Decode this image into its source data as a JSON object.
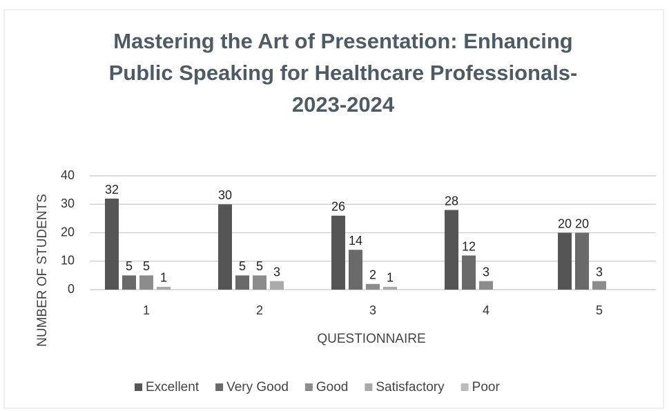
{
  "chart_data": {
    "type": "bar",
    "title": [
      "Mastering the Art of Presentation: Enhancing",
      "Public Speaking for Healthcare Professionals-",
      "2023-2024"
    ],
    "x_label": "QUESTIONNAIRE",
    "y_label": "NUMBER OF STUDENTS",
    "categories": [
      "1",
      "2",
      "3",
      "4",
      "5"
    ],
    "series": [
      {
        "name": "Excellent",
        "color": "#555555",
        "values": [
          32,
          30,
          26,
          28,
          20
        ]
      },
      {
        "name": "Very Good",
        "color": "#6a6a6a",
        "values": [
          5,
          5,
          14,
          12,
          20
        ]
      },
      {
        "name": "Good",
        "color": "#8c8c8c",
        "values": [
          5,
          5,
          2,
          3,
          3
        ]
      },
      {
        "name": "Satisfactory",
        "color": "#aaaaaa",
        "values": [
          1,
          3,
          1,
          null,
          null
        ]
      },
      {
        "name": "Poor",
        "color": "#bbbbbb",
        "values": [
          null,
          null,
          null,
          null,
          null
        ]
      }
    ],
    "ylim": [
      0,
      40
    ],
    "yticks": [
      0,
      10,
      20,
      30,
      40
    ],
    "grid": true,
    "legend": "bottom"
  }
}
